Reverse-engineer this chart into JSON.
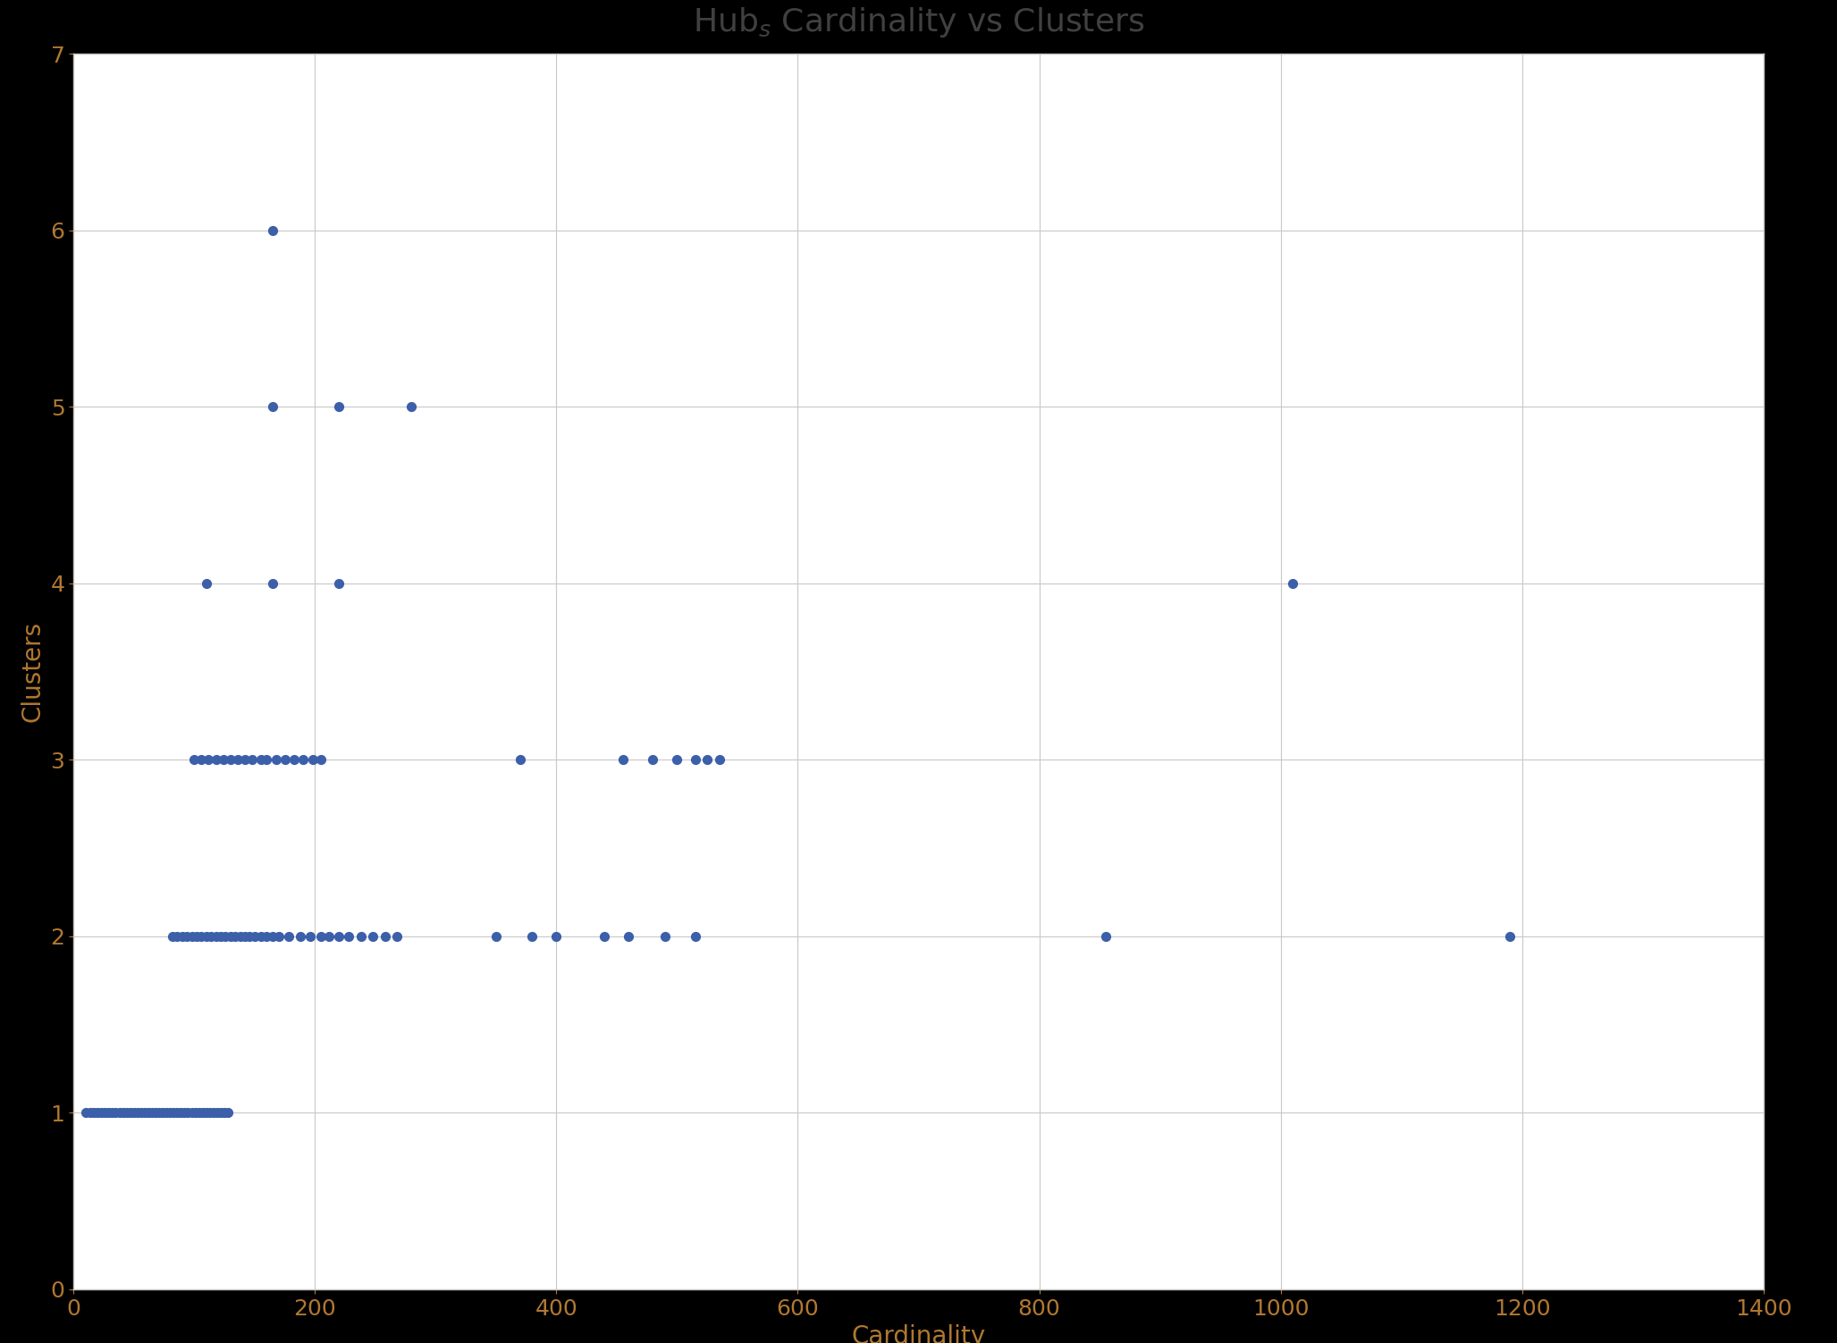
{
  "title": "Hub$_s$ Cardinality vs Clusters",
  "xlabel": "Cardinality",
  "ylabel": "Clusters",
  "xlim": [
    0,
    1400
  ],
  "ylim": [
    0,
    7
  ],
  "xticks": [
    0,
    200,
    400,
    600,
    800,
    1000,
    1200,
    1400
  ],
  "yticks": [
    0,
    1,
    2,
    3,
    4,
    5,
    6,
    7
  ],
  "dot_color": "#3c5faa",
  "dot_size": 50,
  "background_color": "#ffffff",
  "border_color": "#1a1a1a",
  "scatter_x": [
    10,
    14,
    17,
    20,
    23,
    26,
    29,
    32,
    35,
    38,
    41,
    44,
    47,
    50,
    53,
    56,
    59,
    62,
    65,
    68,
    71,
    74,
    77,
    80,
    83,
    86,
    89,
    92,
    95,
    98,
    101,
    104,
    107,
    110,
    113,
    116,
    119,
    122,
    125,
    128,
    82,
    86,
    90,
    94,
    98,
    102,
    106,
    110,
    114,
    118,
    122,
    126,
    130,
    134,
    138,
    142,
    146,
    150,
    155,
    160,
    165,
    170,
    178,
    188,
    196,
    205,
    212,
    220,
    228,
    238,
    248,
    258,
    268,
    350,
    380,
    400,
    440,
    460,
    490,
    515,
    855,
    1190,
    100,
    106,
    112,
    118,
    124,
    130,
    136,
    142,
    148,
    155,
    160,
    168,
    175,
    183,
    190,
    198,
    205,
    370,
    455,
    480,
    500,
    515,
    525,
    535,
    110,
    165,
    220,
    1010,
    165,
    220,
    280,
    165
  ],
  "scatter_y": [
    1,
    1,
    1,
    1,
    1,
    1,
    1,
    1,
    1,
    1,
    1,
    1,
    1,
    1,
    1,
    1,
    1,
    1,
    1,
    1,
    1,
    1,
    1,
    1,
    1,
    1,
    1,
    1,
    1,
    1,
    1,
    1,
    1,
    1,
    1,
    1,
    1,
    1,
    1,
    1,
    2,
    2,
    2,
    2,
    2,
    2,
    2,
    2,
    2,
    2,
    2,
    2,
    2,
    2,
    2,
    2,
    2,
    2,
    2,
    2,
    2,
    2,
    2,
    2,
    2,
    2,
    2,
    2,
    2,
    2,
    2,
    2,
    2,
    2,
    2,
    2,
    2,
    2,
    2,
    2,
    2,
    2,
    3,
    3,
    3,
    3,
    3,
    3,
    3,
    3,
    3,
    3,
    3,
    3,
    3,
    3,
    3,
    3,
    3,
    3,
    3,
    3,
    3,
    3,
    3,
    3,
    4,
    4,
    4,
    4,
    5,
    5,
    5,
    6
  ],
  "grid_color": "#c8c8c8",
  "spine_color": "#c0c0c0",
  "title_fontsize": 26,
  "label_fontsize": 20,
  "tick_fontsize": 18,
  "title_color": "#404040",
  "axis_label_color": "#b07830",
  "tick_color": "#b07830",
  "figure_width": 20.55,
  "figure_height": 15.03,
  "figure_dpi": 100
}
